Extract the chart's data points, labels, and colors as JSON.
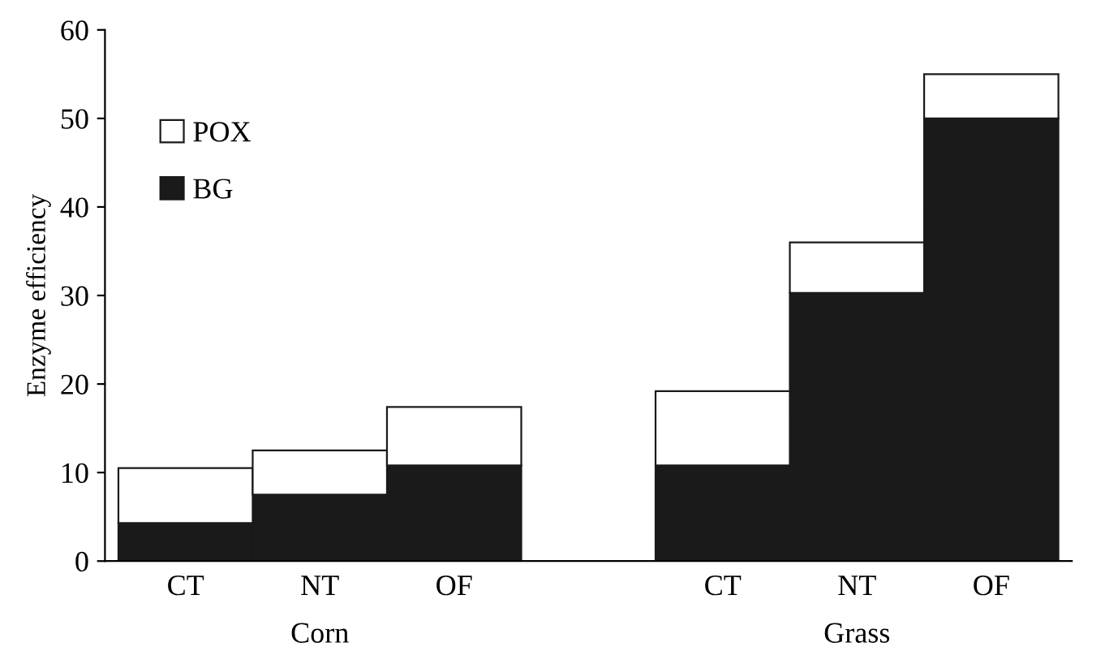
{
  "chart_data": {
    "type": "bar",
    "stacked": true,
    "ylabel": "Enzyme efficiency",
    "categories": [
      "CT",
      "NT",
      "OF",
      null,
      "CT",
      "NT",
      "OF"
    ],
    "series": [
      {
        "name": "BG",
        "color": "#1a1a1a",
        "values": [
          4.3,
          7.5,
          10.8,
          null,
          10.8,
          30.3,
          50
        ]
      },
      {
        "name": "POX",
        "color": "#ffffff",
        "values": [
          6.2,
          5.0,
          6.6,
          null,
          8.4,
          5.7,
          5.0
        ]
      }
    ],
    "annotations": [
      "Corn",
      "Grass"
    ],
    "ylim": [
      0,
      60
    ],
    "yticks": [
      0,
      10,
      20,
      30,
      40,
      50,
      60
    ],
    "legend": "top left",
    "grid": false
  }
}
